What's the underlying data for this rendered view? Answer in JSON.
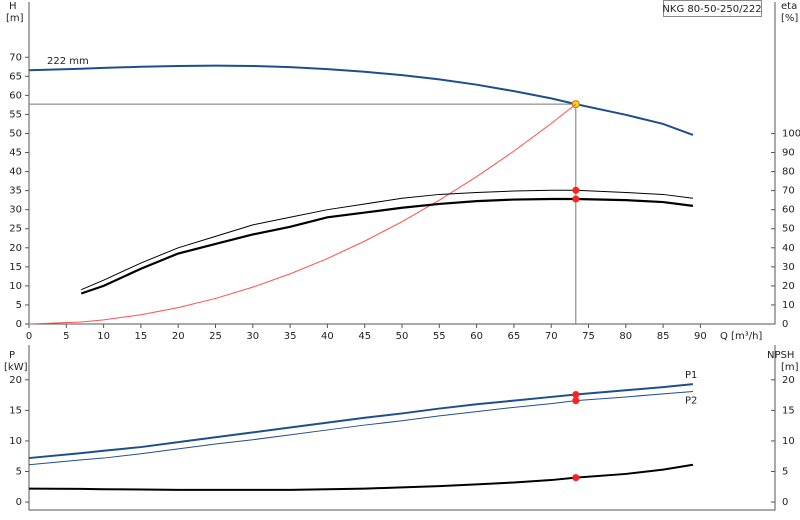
{
  "chart_data": [
    {
      "type": "line",
      "title": "NKG 80-50-250/222",
      "ylabel": "H",
      "yunit": "[m]",
      "y2label": "eta",
      "y2unit": "[%]",
      "xlabel": "Q [m³/h]",
      "x": [
        0,
        7,
        10,
        15,
        20,
        25,
        30,
        35,
        40,
        45,
        50,
        55,
        60,
        65,
        70,
        73.3,
        80,
        85,
        89
      ],
      "xlim": [
        0,
        100
      ],
      "xticks": [
        0,
        5,
        10,
        15,
        20,
        25,
        30,
        35,
        40,
        45,
        50,
        55,
        60,
        65,
        70,
        75,
        80,
        85,
        90
      ],
      "ylim": [
        0,
        84.5
      ],
      "yticks": [
        0,
        5,
        10,
        15,
        20,
        25,
        30,
        35,
        40,
        45,
        50,
        55,
        60,
        65,
        70
      ],
      "y2lim": [
        0,
        169
      ],
      "y2ticks": [
        0,
        10,
        20,
        30,
        40,
        50,
        60,
        70,
        80,
        90,
        100
      ],
      "duty_x": 73.3,
      "series": [
        {
          "name": "222 mm",
          "color": "#1f4e8c",
          "width": 2,
          "marker_color": "#ffd11a",
          "values": [
            66.6,
            67.0,
            67.2,
            67.5,
            67.7,
            67.8,
            67.7,
            67.4,
            66.9,
            66.2,
            65.3,
            64.2,
            62.8,
            61.1,
            59.2,
            57.7,
            54.9,
            52.5,
            49.6
          ]
        },
        {
          "color": "#ff5050",
          "width": 1,
          "values": [
            0,
            0.53,
            1.07,
            2.42,
            4.3,
            6.71,
            9.67,
            13.16,
            17.18,
            21.75,
            26.85,
            32.49,
            38.66,
            45.37,
            52.62,
            57.7,
            null,
            null,
            null
          ]
        },
        {
          "color": "#000000",
          "width": 1,
          "axis": "y2",
          "marker_color": "#ff2020",
          "values": [
            null,
            18,
            23,
            32,
            40,
            46,
            52,
            56,
            60,
            63,
            66,
            68,
            69,
            69.8,
            70.2,
            70.2,
            69,
            68,
            66
          ]
        },
        {
          "color": "#000000",
          "width": 2.2,
          "axis": "y2",
          "marker_color": "#ff2020",
          "values": [
            null,
            16,
            20,
            29,
            37,
            42,
            47,
            51,
            56,
            58.5,
            61,
            63,
            64.5,
            65.3,
            65.6,
            65.6,
            65,
            64,
            62
          ]
        }
      ]
    },
    {
      "type": "line",
      "ylabel": "P",
      "yunit": "[kW]",
      "y2label": "NPSH",
      "y2unit": "[m]",
      "x": [
        0,
        7,
        10,
        15,
        20,
        25,
        30,
        35,
        40,
        45,
        50,
        55,
        60,
        65,
        70,
        73.3,
        80,
        85,
        89
      ],
      "xlim": [
        0,
        100
      ],
      "ylim": [
        -1.3,
        25.7
      ],
      "yticks": [
        0,
        5,
        10,
        15,
        20
      ],
      "y2lim": [
        -1.3,
        25.7
      ],
      "y2ticks": [
        0,
        5,
        10,
        15,
        20
      ],
      "duty_x": 73.3,
      "series": [
        {
          "name": "P1",
          "color": "#1f4e8c",
          "width": 2,
          "marker_color": "#ff2020",
          "values": [
            7.2,
            8.0,
            8.4,
            9.0,
            9.8,
            10.6,
            11.4,
            12.2,
            13.0,
            13.8,
            14.5,
            15.3,
            16.0,
            16.6,
            17.2,
            17.6,
            18.3,
            18.8,
            19.3
          ]
        },
        {
          "name": "P2",
          "color": "#1f4e8c",
          "width": 1,
          "marker_color": "#ff2020",
          "values": [
            6.1,
            6.9,
            7.2,
            7.9,
            8.7,
            9.5,
            10.2,
            11.0,
            11.8,
            12.6,
            13.3,
            14.1,
            14.8,
            15.5,
            16.1,
            16.6,
            17.2,
            17.7,
            18.1
          ]
        },
        {
          "color": "#000000",
          "width": 2,
          "axis": "y2",
          "marker_color": "#ff2020",
          "values": [
            2.2,
            2.15,
            2.1,
            2.05,
            2.0,
            2.0,
            2.0,
            2.0,
            2.1,
            2.2,
            2.4,
            2.6,
            2.9,
            3.2,
            3.6,
            4.0,
            4.6,
            5.3,
            6.1
          ]
        }
      ]
    }
  ]
}
